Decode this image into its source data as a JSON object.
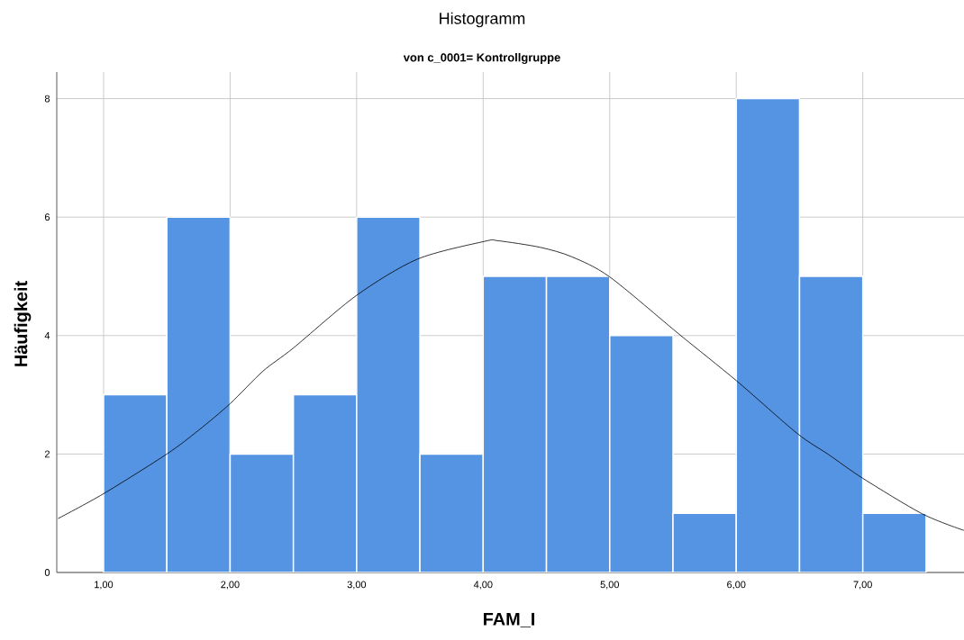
{
  "chart_data": {
    "type": "histogram",
    "title": "Histogramm",
    "subtitle": "von c_0001= Kontrollgruppe",
    "xlabel": "FAM_I",
    "ylabel": "Häufigkeit",
    "bins": [
      1.0,
      1.5,
      2.0,
      2.5,
      3.0,
      3.5,
      4.0,
      4.5,
      5.0,
      5.5,
      6.0,
      6.5,
      7.0,
      7.5
    ],
    "values": [
      3,
      6,
      2,
      3,
      6,
      2,
      5,
      5,
      4,
      1,
      8,
      5,
      1
    ],
    "color": "#5594e3",
    "series": [
      {
        "type": "line",
        "color": "#000000",
        "x": [
          0.64,
          1.0,
          1.5,
          1.75,
          2.0,
          2.26,
          2.5,
          3.0,
          3.48,
          4.01,
          4.12,
          4.45,
          4.7,
          5.0,
          5.55,
          6.0,
          6.48,
          6.73,
          7.0,
          7.47,
          7.8
        ],
        "values": [
          0.91,
          1.33,
          2.0,
          2.4,
          2.85,
          3.4,
          3.79,
          4.68,
          5.29,
          5.59,
          5.6,
          5.49,
          5.33,
          4.99,
          4.02,
          3.24,
          2.35,
          1.99,
          1.59,
          0.99,
          0.71
        ]
      }
    ],
    "xlim": [
      0.63,
      7.8
    ],
    "ylim": [
      0,
      8.45
    ],
    "xticks": [
      {
        "value": 1,
        "label": "1,00"
      },
      {
        "value": 2,
        "label": "2,00"
      },
      {
        "value": 3,
        "label": "3,00"
      },
      {
        "value": 4,
        "label": "4,00"
      },
      {
        "value": 5,
        "label": "5,00"
      },
      {
        "value": 6,
        "label": "6,00"
      },
      {
        "value": 7,
        "label": "7,00"
      }
    ],
    "yticks": [
      0,
      2,
      4,
      6,
      8
    ],
    "grid": true
  }
}
